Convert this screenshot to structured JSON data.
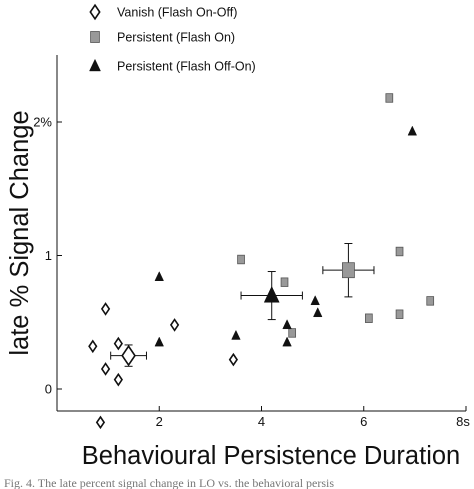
{
  "chart_data": {
    "type": "scatter",
    "xlabel": "Behavioural Persistence Duration",
    "ylabel": "late % Signal Change",
    "xlim": [
      0,
      8
    ],
    "ylim": [
      -0.25,
      2.5
    ],
    "x_ticks": [
      {
        "value": 2,
        "label": "2"
      },
      {
        "value": 4,
        "label": "4"
      },
      {
        "value": 6,
        "label": "6"
      },
      {
        "value": 8,
        "label": "8s"
      }
    ],
    "y_ticks": [
      {
        "value": 0,
        "label": "0"
      },
      {
        "value": 1,
        "label": "1"
      },
      {
        "value": 2,
        "label": "2%"
      }
    ],
    "grid": false,
    "legend_position": "top-left",
    "series": [
      {
        "name": "Vanish (Flash On-Off)",
        "marker": "diamond-open",
        "color": "#111111",
        "points": [
          {
            "x": 0.7,
            "y": 0.32
          },
          {
            "x": 0.95,
            "y": 0.6
          },
          {
            "x": 0.95,
            "y": 0.15
          },
          {
            "x": 1.2,
            "y": 0.34
          },
          {
            "x": 1.2,
            "y": 0.07
          },
          {
            "x": 2.3,
            "y": 0.48
          },
          {
            "x": 3.45,
            "y": 0.22
          },
          {
            "x": 0.85,
            "y": -0.25
          }
        ],
        "mean": {
          "x": 1.4,
          "y": 0.25,
          "x_err": 0.35,
          "y_err": 0.08
        }
      },
      {
        "name": "Persistent (Flash On)",
        "marker": "square",
        "color": "#999999",
        "points": [
          {
            "x": 3.6,
            "y": 0.97
          },
          {
            "x": 4.45,
            "y": 0.8
          },
          {
            "x": 4.6,
            "y": 0.42
          },
          {
            "x": 6.5,
            "y": 2.18
          },
          {
            "x": 6.1,
            "y": 0.53
          },
          {
            "x": 6.7,
            "y": 1.03
          },
          {
            "x": 6.7,
            "y": 0.56
          },
          {
            "x": 7.3,
            "y": 0.66
          }
        ],
        "mean": {
          "x": 5.7,
          "y": 0.89,
          "x_err": 0.5,
          "y_err": 0.2
        }
      },
      {
        "name": "Persistent (Flash Off-On)",
        "marker": "triangle",
        "color": "#111111",
        "points": [
          {
            "x": 2.0,
            "y": 0.84
          },
          {
            "x": 2.0,
            "y": 0.35
          },
          {
            "x": 3.5,
            "y": 0.4
          },
          {
            "x": 4.5,
            "y": 0.48
          },
          {
            "x": 4.5,
            "y": 0.35
          },
          {
            "x": 5.05,
            "y": 0.66
          },
          {
            "x": 5.1,
            "y": 0.57
          },
          {
            "x": 6.95,
            "y": 1.93
          }
        ],
        "mean": {
          "x": 4.2,
          "y": 0.7,
          "x_err": 0.6,
          "y_err": 0.18
        }
      }
    ]
  },
  "caption": "Fig. 4.    The late percent signal change in LO vs. the behavioral persis"
}
